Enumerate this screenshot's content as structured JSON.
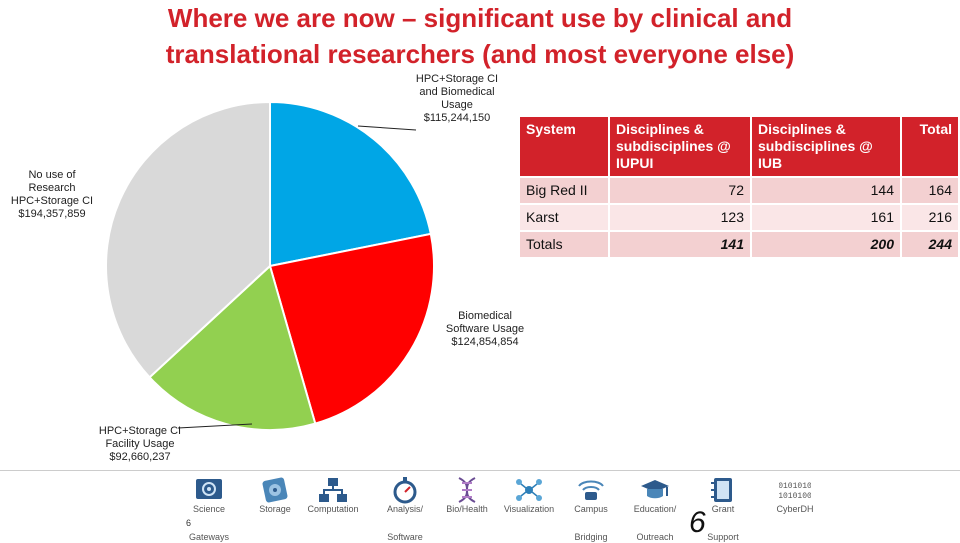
{
  "slide": {
    "title_line1": "Where we are now – significant use by clinical and",
    "title_line2": "translational researchers (and most everyone else)",
    "slide_number": "6",
    "page_marker": "6"
  },
  "chart_data": {
    "type": "pie",
    "slices": [
      {
        "label_lines": [
          "HPC+Storage CI",
          "and Biomedical",
          "Usage",
          "$115,244,150"
        ],
        "value": 115244150,
        "color": "#00a6e6"
      },
      {
        "label_lines": [
          "Biomedical",
          "Software Usage",
          "$124,854,854"
        ],
        "value": 124854854,
        "color": "#ff0000"
      },
      {
        "label_lines": [
          "HPC+Storage CI",
          "Facility Usage",
          "$92,660,237"
        ],
        "value": 92660237,
        "color": "#92d050"
      },
      {
        "label_lines": [
          "No use of",
          "Research",
          "HPC+Storage CI",
          "$194,357,859"
        ],
        "value": 194357859,
        "color": "#d9d9d9"
      }
    ]
  },
  "table": {
    "headers": [
      "System",
      "Disciplines & subdisciplines @ IUPUI",
      "Disciplines & subdisciplines @ IUB",
      "Total"
    ],
    "header_colors": {
      "header_bg": "#d2222a",
      "row_dark": "#f3d0d1",
      "row_light": "#fae6e7"
    },
    "rows": [
      [
        "Big Red II",
        "72",
        "144",
        "164"
      ],
      [
        "Karst",
        "123",
        "161",
        "216"
      ],
      [
        "Totals",
        "141",
        "200",
        "244"
      ]
    ]
  },
  "footer": {
    "items": [
      {
        "line1": "Science",
        "line2": "Gateways",
        "icon": "monitor-gear-icon"
      },
      {
        "line1": "Storage",
        "line2": "",
        "icon": "disk-drive-icon"
      },
      {
        "line1": "Computation",
        "line2": "",
        "icon": "network-diagram-icon"
      },
      {
        "line1": "Analysis/",
        "line2": "Software",
        "icon": "stopwatch-icon"
      },
      {
        "line1": "Bio/Health",
        "line2": "",
        "icon": "dna-icon"
      },
      {
        "line1": "Visualization",
        "line2": "",
        "icon": "molecule-icon"
      },
      {
        "line1": "Campus",
        "line2": "Bridging",
        "icon": "wireless-icon"
      },
      {
        "line1": "Education/",
        "line2": "Outreach",
        "icon": "graduation-cap-icon"
      },
      {
        "line1": "Grant",
        "line2": "Support",
        "icon": "notebook-icon"
      },
      {
        "line1": "CyberDH",
        "line2": "",
        "icon": "binary-icon"
      }
    ]
  }
}
